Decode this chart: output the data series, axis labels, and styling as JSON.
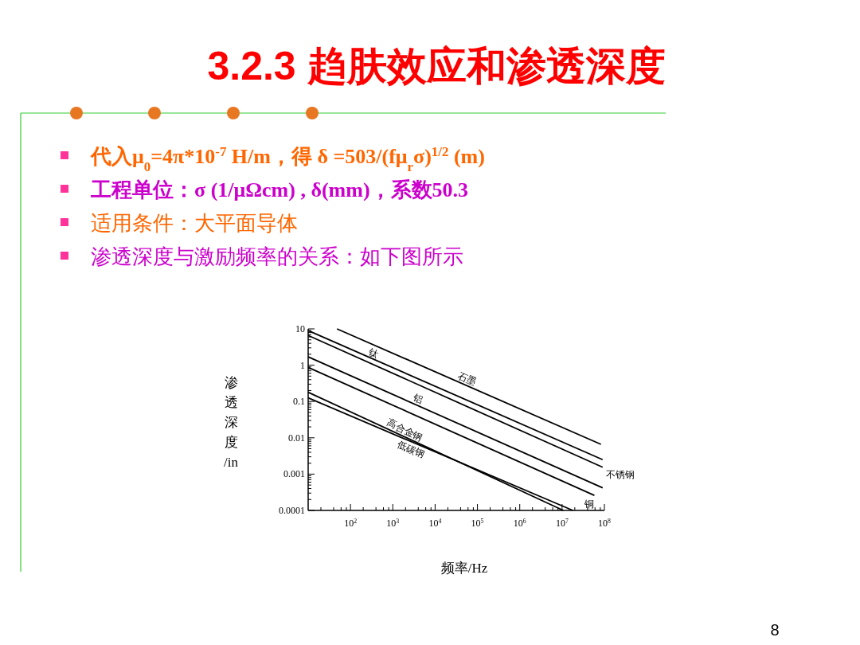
{
  "chart_data": {
    "type": "line",
    "title": "3.2.3 趋肤效应和渗透深度",
    "xlabel": "频率/Hz",
    "ylabel": "渗透深度/in",
    "log": "xy",
    "grid": false,
    "legend": false,
    "marker": "none",
    "line_style": "solid",
    "xlim": [
      10,
      100000000
    ],
    "ylim": [
      0.0001,
      10
    ],
    "xticks": [
      {
        "value": 100,
        "label": "10$^{2}$"
      },
      {
        "value": 1000,
        "label": "10$^{3}$"
      },
      {
        "value": 10000,
        "label": "10$^{4}$"
      },
      {
        "value": 100000,
        "label": "10$^{5}$"
      },
      {
        "value": 1000000,
        "label": "10$^{6}$"
      },
      {
        "value": 10000000,
        "label": "10$^{7}$"
      },
      {
        "value": 100000000,
        "label": "10$^{8}$"
      }
    ],
    "yticks": [
      {
        "value": 10,
        "label": "10"
      },
      {
        "value": 1,
        "label": "1"
      },
      {
        "value": 0.1,
        "label": "0.1"
      },
      {
        "value": 0.01,
        "label": "0.01"
      },
      {
        "value": 0.001,
        "label": "0.001"
      },
      {
        "value": 0.0001,
        "label": "0.0001"
      }
    ],
    "series": [
      {
        "name": "石墨",
        "color": "#000000",
        "x": [
          48,
          83000000
        ],
        "values": [
          10,
          0.0066
        ]
      },
      {
        "name": "钛",
        "color": "#000000",
        "x": [
          10,
          91000000
        ],
        "values": [
          9,
          0.0025
        ]
      },
      {
        "name": "不锈钢",
        "color": "#000000",
        "x": [
          10,
          91000000
        ],
        "values": [
          6.6,
          0.00155
        ]
      },
      {
        "name": "铝",
        "color": "#000000",
        "x": [
          10,
          91000000
        ],
        "values": [
          1.7,
          0.00042
        ]
      },
      {
        "name": "铜",
        "color": "#000000",
        "x": [
          10,
          58000000
        ],
        "values": [
          0.87,
          0.00026
        ]
      },
      {
        "name": "高合金钢",
        "color": "#000000",
        "x": [
          10,
          10700000
        ],
        "values": [
          0.18,
          0.0001
        ]
      },
      {
        "name": "低碳钢",
        "color": "#000000",
        "x": [
          10,
          18000000
        ],
        "values": [
          0.126,
          0.0001
        ]
      }
    ],
    "annotations": [
      "代入μ$_{0}$=4π*10$^{-7}$ H/m，得 δ =503/(fμ$_{r}$σ)$^{1/2}$ (m)",
      "工程单位：σ (1/μΩcm) , δ(mm)，系数50.3",
      "适用条件：大平面导体",
      "渗透深度与激励频率的关系：如下图所示",
      "8"
    ]
  }
}
